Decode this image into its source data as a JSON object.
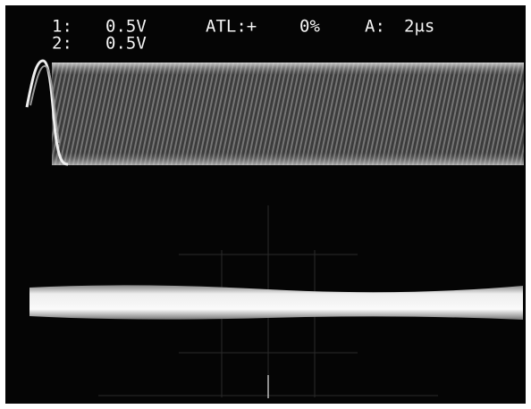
{
  "readout": {
    "channels": [
      {
        "label": "1:",
        "scale": "0.5V"
      },
      {
        "label": "2:",
        "scale": "0.5V"
      }
    ],
    "trigger": {
      "label": "ATL:+",
      "level": "0%"
    },
    "timebase": {
      "label": "A:",
      "value": "2μs"
    }
  }
}
